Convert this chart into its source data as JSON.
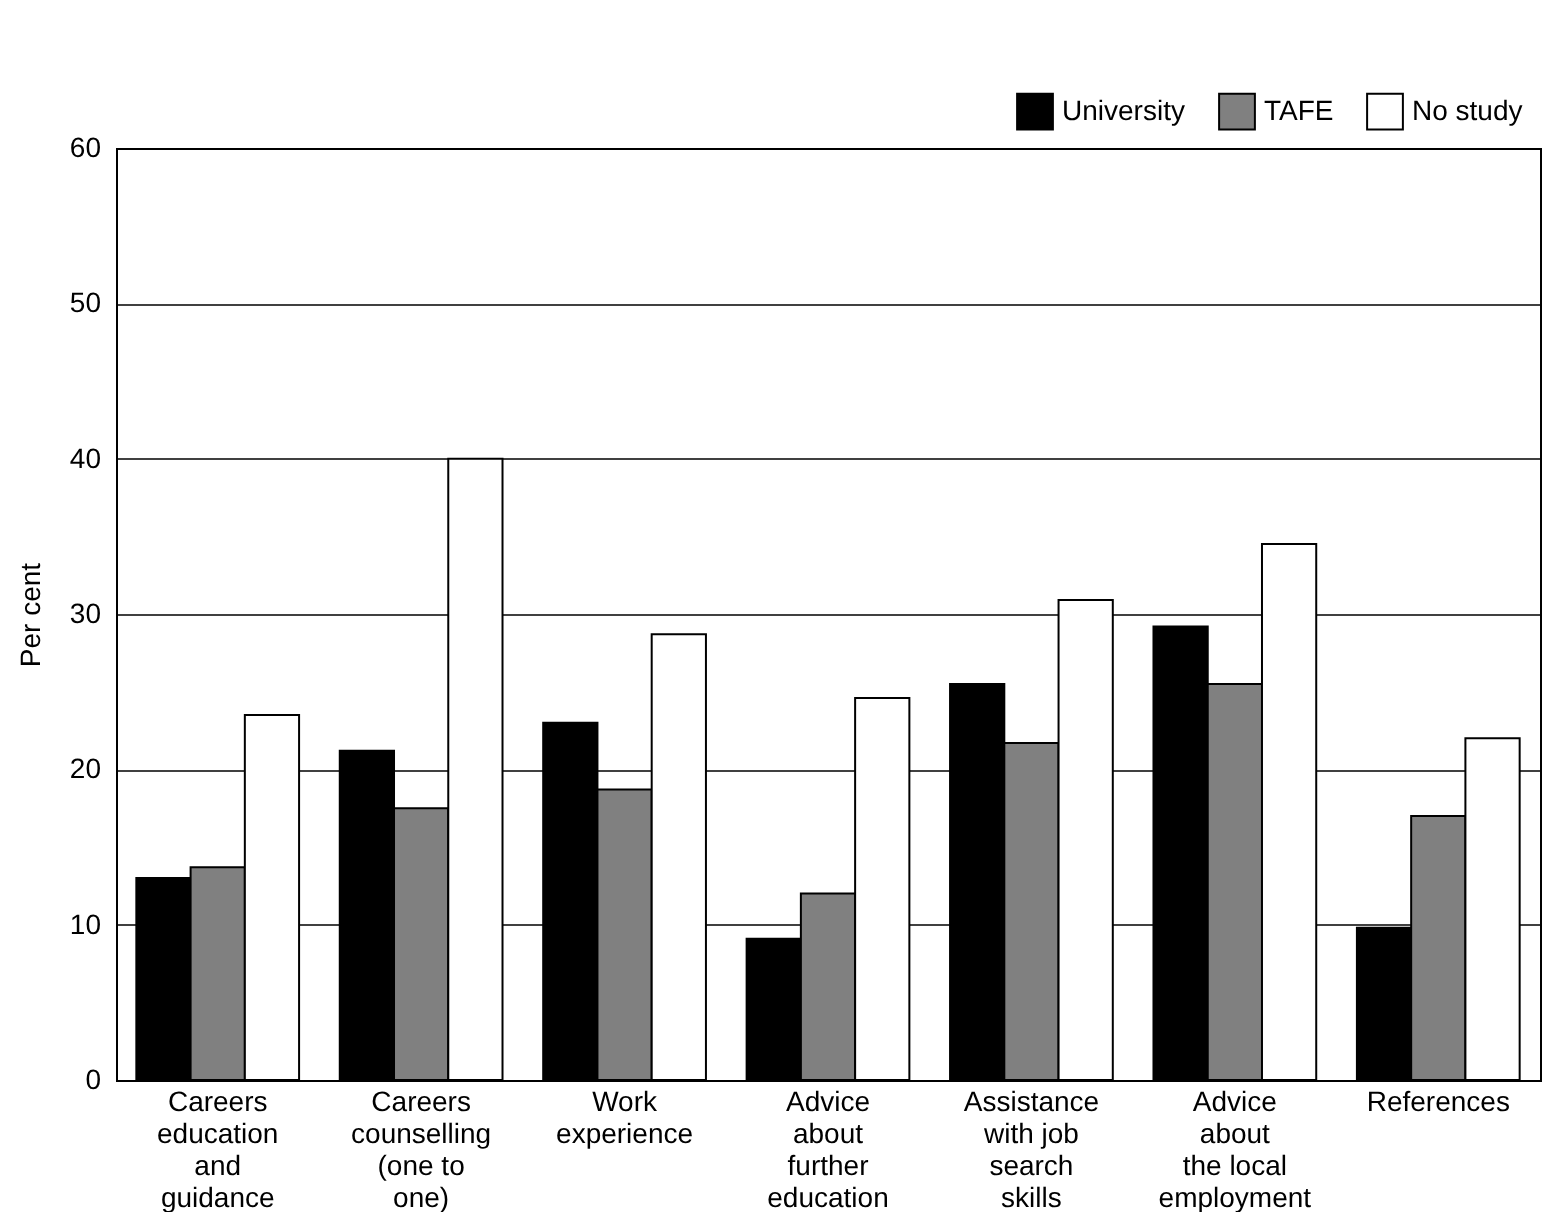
{
  "chart_data": {
    "type": "bar",
    "ylabel": "Per cent",
    "categories": [
      "Careers\neducation\nand\nguidance",
      "Careers\ncounselling\n(one to\none)",
      "Work\nexperience",
      "Advice\nabout\nfurther\neducation",
      "Assistance\nwith job\nsearch\nskills",
      "Advice\nabout\nthe local\nemployment",
      "References"
    ],
    "series": [
      {
        "name": "University",
        "color": "#000000",
        "values": [
          13.0,
          21.2,
          23.0,
          9.1,
          25.5,
          29.2,
          9.8
        ]
      },
      {
        "name": "TAFE",
        "color": "#808080",
        "values": [
          13.7,
          17.5,
          18.7,
          12.0,
          21.7,
          25.5,
          17.0
        ]
      },
      {
        "name": "No study",
        "color": "#ffffff",
        "values": [
          23.5,
          40.0,
          28.7,
          24.6,
          30.9,
          34.5,
          22.0
        ]
      }
    ],
    "ylim": [
      0,
      60
    ],
    "yticks": [
      0,
      10,
      20,
      30,
      40,
      50,
      60
    ],
    "grid": "y",
    "legend": "top right"
  }
}
